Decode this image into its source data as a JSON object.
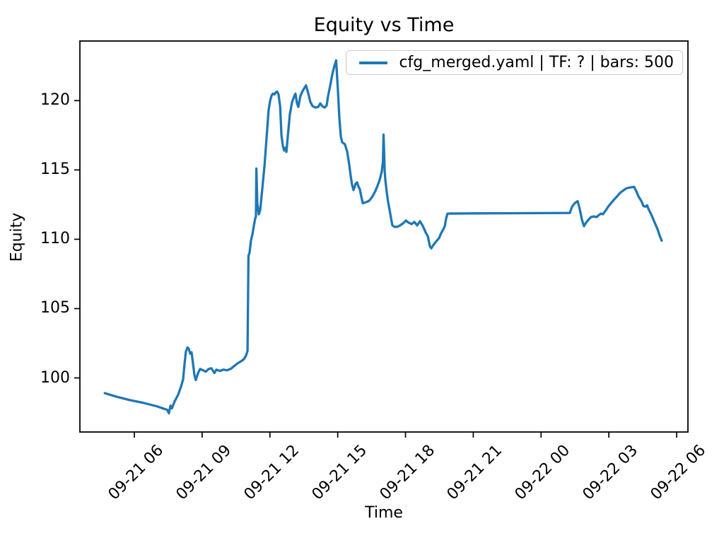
{
  "chart_data": {
    "type": "line",
    "title": "Equity vs Time",
    "xlabel": "Time",
    "ylabel": "Equity",
    "grid": false,
    "legend_position": "upper right",
    "x_unit": "hours since 09-21 00:00",
    "xlim": [
      3.59,
      30.5
    ],
    "ylim": [
      96.1,
      124.3
    ],
    "x_ticks": [
      {
        "value": 6,
        "label": "09-21 06"
      },
      {
        "value": 9,
        "label": "09-21 09"
      },
      {
        "value": 12,
        "label": "09-21 12"
      },
      {
        "value": 15,
        "label": "09-21 15"
      },
      {
        "value": 18,
        "label": "09-21 18"
      },
      {
        "value": 21,
        "label": "09-21 21"
      },
      {
        "value": 24,
        "label": "09-22 00"
      },
      {
        "value": 27,
        "label": "09-22 03"
      },
      {
        "value": 30,
        "label": "09-22 06"
      }
    ],
    "y_ticks": [
      100,
      105,
      110,
      115,
      120
    ],
    "series": [
      {
        "name": "cfg_merged.yaml | TF: ? | bars: 500",
        "color": "#1f77b4",
        "points": [
          [
            4.69,
            98.9
          ],
          [
            5.2,
            98.65
          ],
          [
            5.8,
            98.4
          ],
          [
            6.4,
            98.2
          ],
          [
            7.0,
            97.95
          ],
          [
            7.3,
            97.78
          ],
          [
            7.45,
            97.7
          ],
          [
            7.53,
            97.45
          ],
          [
            7.6,
            98.0
          ],
          [
            7.66,
            97.8
          ],
          [
            7.78,
            98.3
          ],
          [
            7.94,
            98.8
          ],
          [
            8.07,
            99.4
          ],
          [
            8.16,
            99.9
          ],
          [
            8.22,
            101.0
          ],
          [
            8.28,
            101.9
          ],
          [
            8.35,
            102.2
          ],
          [
            8.41,
            102.1
          ],
          [
            8.47,
            101.75
          ],
          [
            8.53,
            101.85
          ],
          [
            8.6,
            101.0
          ],
          [
            8.66,
            100.2
          ],
          [
            8.72,
            99.85
          ],
          [
            8.82,
            100.35
          ],
          [
            8.91,
            100.65
          ],
          [
            9.04,
            100.55
          ],
          [
            9.16,
            100.45
          ],
          [
            9.29,
            100.65
          ],
          [
            9.41,
            100.7
          ],
          [
            9.54,
            100.35
          ],
          [
            9.63,
            100.6
          ],
          [
            9.79,
            100.5
          ],
          [
            9.94,
            100.6
          ],
          [
            10.1,
            100.55
          ],
          [
            10.26,
            100.65
          ],
          [
            10.41,
            100.85
          ],
          [
            10.57,
            101.05
          ],
          [
            10.72,
            101.2
          ],
          [
            10.85,
            101.35
          ],
          [
            10.94,
            101.6
          ],
          [
            11.01,
            101.95
          ],
          [
            11.05,
            108.8
          ],
          [
            11.1,
            109.05
          ],
          [
            11.16,
            109.9
          ],
          [
            11.23,
            110.4
          ],
          [
            11.29,
            111.0
          ],
          [
            11.35,
            111.5
          ],
          [
            11.38,
            111.65
          ],
          [
            11.4,
            115.1
          ],
          [
            11.44,
            112.6
          ],
          [
            11.51,
            111.8
          ],
          [
            11.57,
            112.1
          ],
          [
            11.66,
            113.6
          ],
          [
            11.76,
            115.3
          ],
          [
            11.85,
            117.3
          ],
          [
            11.94,
            119.3
          ],
          [
            12.01,
            120.0
          ],
          [
            12.07,
            120.35
          ],
          [
            12.13,
            120.5
          ],
          [
            12.2,
            120.45
          ],
          [
            12.26,
            120.6
          ],
          [
            12.32,
            120.65
          ],
          [
            12.38,
            120.45
          ],
          [
            12.45,
            119.6
          ],
          [
            12.51,
            117.5
          ],
          [
            12.57,
            116.75
          ],
          [
            12.63,
            116.4
          ],
          [
            12.68,
            116.6
          ],
          [
            12.73,
            116.3
          ],
          [
            12.79,
            117.4
          ],
          [
            12.88,
            119.0
          ],
          [
            12.98,
            119.9
          ],
          [
            13.07,
            120.3
          ],
          [
            13.13,
            120.5
          ],
          [
            13.2,
            119.8
          ],
          [
            13.26,
            119.55
          ],
          [
            13.35,
            120.35
          ],
          [
            13.45,
            120.7
          ],
          [
            13.54,
            120.95
          ],
          [
            13.6,
            121.1
          ],
          [
            13.7,
            120.5
          ],
          [
            13.79,
            119.9
          ],
          [
            13.89,
            119.6
          ],
          [
            14.01,
            119.5
          ],
          [
            14.14,
            119.55
          ],
          [
            14.23,
            119.8
          ],
          [
            14.32,
            119.6
          ],
          [
            14.42,
            119.5
          ],
          [
            14.51,
            119.65
          ],
          [
            14.57,
            120.3
          ],
          [
            14.67,
            121.1
          ],
          [
            14.76,
            121.9
          ],
          [
            14.85,
            122.5
          ],
          [
            14.93,
            122.9
          ],
          [
            15.01,
            120.7
          ],
          [
            15.07,
            118.8
          ],
          [
            15.14,
            117.4
          ],
          [
            15.2,
            117.0
          ],
          [
            15.32,
            116.85
          ],
          [
            15.42,
            116.3
          ],
          [
            15.51,
            115.4
          ],
          [
            15.57,
            114.6
          ],
          [
            15.64,
            113.9
          ],
          [
            15.7,
            113.55
          ],
          [
            15.79,
            114.0
          ],
          [
            15.86,
            114.1
          ],
          [
            15.92,
            113.8
          ],
          [
            15.98,
            113.6
          ],
          [
            16.04,
            113.1
          ],
          [
            16.11,
            112.6
          ],
          [
            16.2,
            112.65
          ],
          [
            16.29,
            112.7
          ],
          [
            16.39,
            112.78
          ],
          [
            16.48,
            112.95
          ],
          [
            16.58,
            113.2
          ],
          [
            16.67,
            113.5
          ],
          [
            16.76,
            113.85
          ],
          [
            16.86,
            114.3
          ],
          [
            16.95,
            114.9
          ],
          [
            17.0,
            115.6
          ],
          [
            17.03,
            117.55
          ],
          [
            17.08,
            114.9
          ],
          [
            17.11,
            114.25
          ],
          [
            17.17,
            113.4
          ],
          [
            17.23,
            112.7
          ],
          [
            17.3,
            112.1
          ],
          [
            17.36,
            111.5
          ],
          [
            17.42,
            111.0
          ],
          [
            17.51,
            110.9
          ],
          [
            17.64,
            110.9
          ],
          [
            17.76,
            111.0
          ],
          [
            17.89,
            111.15
          ],
          [
            18.02,
            111.35
          ],
          [
            18.14,
            111.2
          ],
          [
            18.27,
            111.1
          ],
          [
            18.39,
            111.25
          ],
          [
            18.52,
            111.0
          ],
          [
            18.64,
            111.3
          ],
          [
            18.77,
            110.95
          ],
          [
            18.89,
            110.5
          ],
          [
            18.99,
            110.2
          ],
          [
            19.08,
            109.5
          ],
          [
            19.14,
            109.35
          ],
          [
            19.24,
            109.6
          ],
          [
            19.36,
            109.85
          ],
          [
            19.49,
            110.1
          ],
          [
            19.58,
            110.45
          ],
          [
            19.67,
            110.7
          ],
          [
            19.74,
            110.95
          ],
          [
            19.8,
            111.5
          ],
          [
            19.86,
            111.85
          ],
          [
            21.0,
            111.87
          ],
          [
            22.5,
            111.88
          ],
          [
            24.0,
            111.89
          ],
          [
            25.27,
            111.9
          ],
          [
            25.37,
            112.35
          ],
          [
            25.49,
            112.6
          ],
          [
            25.62,
            112.75
          ],
          [
            25.71,
            112.2
          ],
          [
            25.81,
            111.4
          ],
          [
            25.9,
            110.95
          ],
          [
            25.99,
            111.2
          ],
          [
            26.09,
            111.4
          ],
          [
            26.21,
            111.6
          ],
          [
            26.34,
            111.65
          ],
          [
            26.46,
            111.6
          ],
          [
            26.56,
            111.75
          ],
          [
            26.65,
            111.85
          ],
          [
            26.74,
            111.8
          ],
          [
            26.87,
            112.1
          ],
          [
            26.99,
            112.4
          ],
          [
            27.12,
            112.65
          ],
          [
            27.25,
            112.9
          ],
          [
            27.37,
            113.1
          ],
          [
            27.5,
            113.35
          ],
          [
            27.62,
            113.5
          ],
          [
            27.75,
            113.65
          ],
          [
            27.87,
            113.72
          ],
          [
            28.0,
            113.75
          ],
          [
            28.12,
            113.78
          ],
          [
            28.22,
            113.45
          ],
          [
            28.31,
            113.1
          ],
          [
            28.44,
            112.75
          ],
          [
            28.53,
            112.4
          ],
          [
            28.62,
            112.35
          ],
          [
            28.69,
            112.45
          ],
          [
            28.78,
            112.1
          ],
          [
            28.9,
            111.7
          ],
          [
            29.03,
            111.2
          ],
          [
            29.16,
            110.7
          ],
          [
            29.25,
            110.25
          ],
          [
            29.34,
            109.9
          ]
        ]
      }
    ]
  }
}
